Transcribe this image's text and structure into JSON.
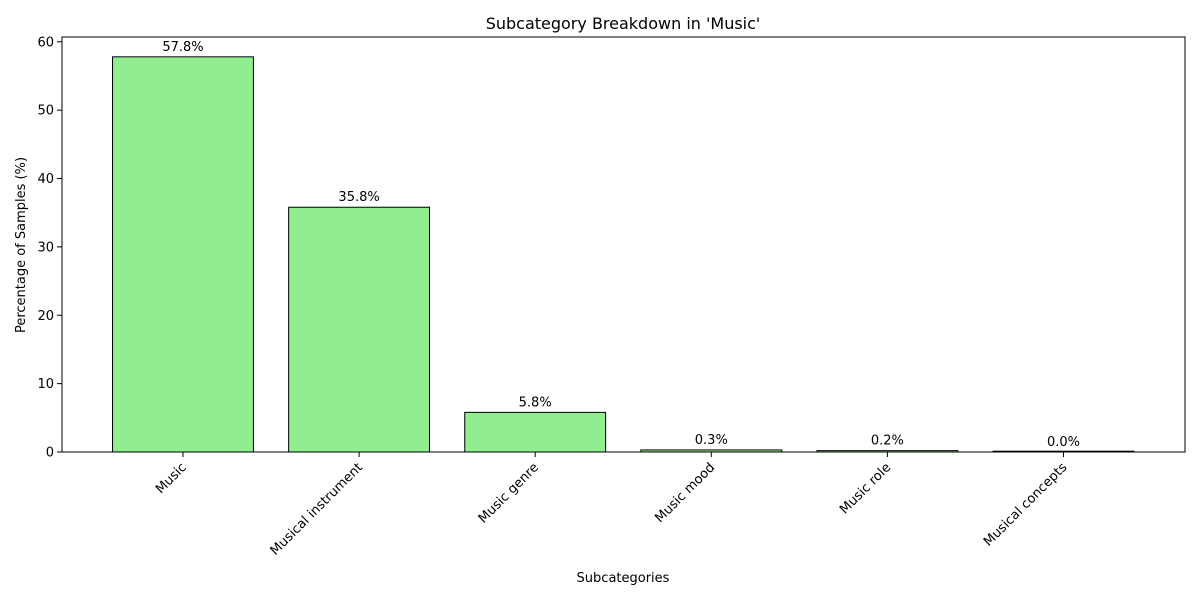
{
  "chart_data": {
    "type": "bar",
    "title": "Subcategory Breakdown in 'Music'",
    "xlabel": "Subcategories",
    "ylabel": "Percentage of Samples (%)",
    "categories": [
      "Music",
      "Musical instrument",
      "Music genre",
      "Music mood",
      "Music role",
      "Musical concepts"
    ],
    "values": [
      57.8,
      35.8,
      5.8,
      0.3,
      0.2,
      0.0
    ],
    "data_labels": [
      "57.8%",
      "35.8%",
      "5.8%",
      "0.3%",
      "0.2%",
      "0.0%"
    ],
    "yticks": [
      0,
      10,
      20,
      30,
      40,
      50,
      60
    ],
    "ylim": [
      0,
      60.7
    ],
    "grid": false,
    "legend": "none",
    "bar_color": "#90ee90",
    "edge_color": "#000000"
  }
}
